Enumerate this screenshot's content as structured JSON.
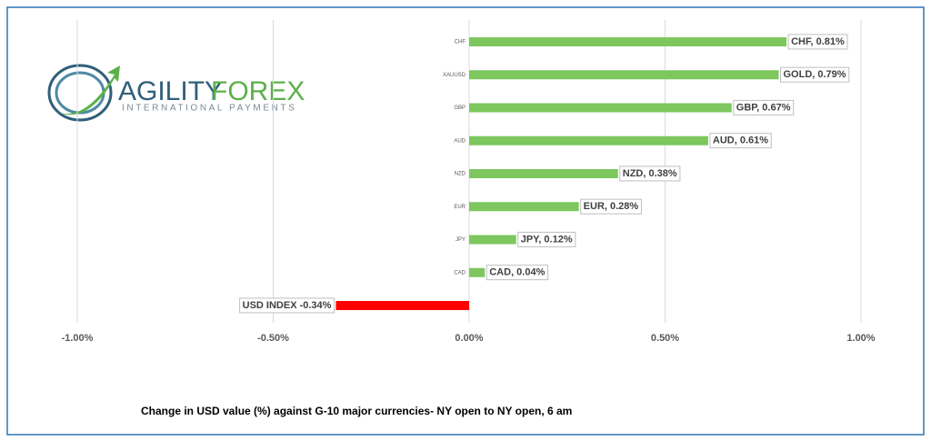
{
  "logo": {
    "brand_left": "AGILITY",
    "brand_right": "FOREX",
    "tagline": "INTERNATIONAL PAYMENTS"
  },
  "chart_data": {
    "type": "hbar",
    "caption": "Change in  USD value (%)  against  G-10 major currencies- NY open to NY open, 6 am",
    "categories": [
      "CHF",
      "XAUUSD",
      "GBP",
      "AUD",
      "NZD",
      "EUR",
      "JPY",
      "CAD",
      null
    ],
    "values": [
      0.81,
      0.79,
      0.67,
      0.61,
      0.38,
      0.28,
      0.12,
      0.04,
      -0.34
    ],
    "value_labels": [
      "CHF, 0.81%",
      "GOLD, 0.79%",
      "GBP, 0.67%",
      "AUD, 0.61%",
      "NZD, 0.38%",
      "EUR, 0.28%",
      "JPY, 0.12%",
      "CAD, 0.04%",
      "USD INDEX -0.34%"
    ],
    "colors": [
      "#7dc75e",
      "#7dc75e",
      "#7dc75e",
      "#7dc75e",
      "#7dc75e",
      "#7dc75e",
      "#7dc75e",
      "#7dc75e",
      "#ff0000"
    ],
    "xlim": [
      -1,
      1
    ],
    "xticks": [
      {
        "value": -1,
        "label": "-1.00%"
      },
      {
        "value": -0.5,
        "label": "-0.50%"
      },
      {
        "value": 0,
        "label": "0.00%"
      },
      {
        "value": 0.5,
        "label": "0.50%"
      },
      {
        "value": 1,
        "label": "1.00%"
      }
    ],
    "grid": true
  }
}
